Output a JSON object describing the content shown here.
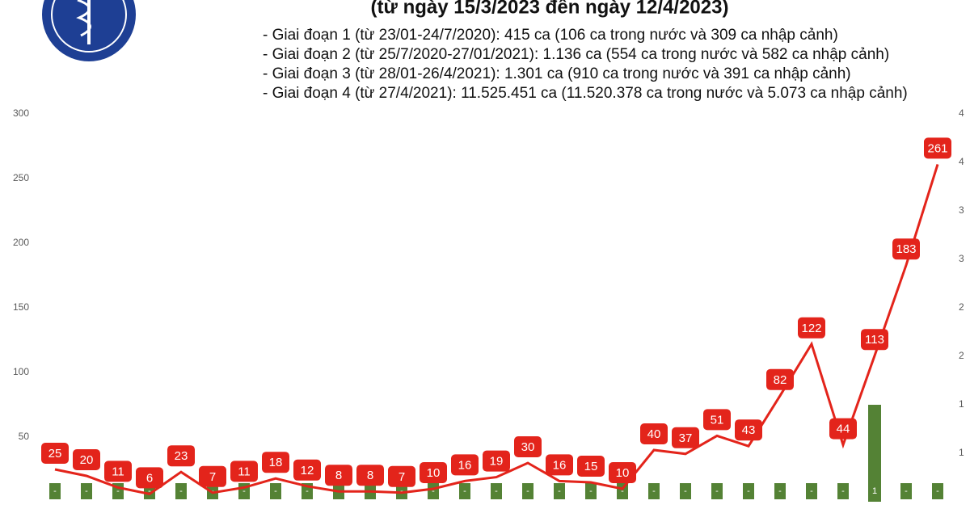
{
  "chart_data": {
    "type": "combo",
    "title": "(từ ngày 15/3/2023 đến ngày 12/4/2023)",
    "notes": [
      "- Giai đoạn 1 (từ 23/01-24/7/2020): 415 ca (106 ca trong nước và 309 ca nhập cảnh)",
      "- Giai đoạn 2 (từ 25/7/2020-27/01/2021): 1.136 ca (554 ca trong nước và 582 ca nhập cảnh)",
      "- Giai đoạn 3 (từ 28/01-26/4/2021): 1.301 ca (910 ca trong nước và 391 ca nhập cảnh)",
      "- Giai đoạn 4 (từ 27/4/2021): 11.525.451 ca (11.520.378 ca trong nước và 5.073 ca nhập cảnh)"
    ],
    "categories": [
      null,
      null,
      null,
      null,
      null,
      null,
      null,
      null,
      null,
      null,
      null,
      null,
      null,
      null,
      null,
      null,
      null,
      null,
      null,
      null,
      null,
      null,
      null,
      null,
      null,
      null,
      null,
      null,
      null
    ],
    "series": [
      {
        "type": "bar",
        "axis": "y2",
        "color": "#548235",
        "values": [
          0,
          0,
          0,
          0,
          0,
          0,
          0,
          0,
          0,
          0,
          0,
          0,
          0,
          0,
          0,
          0,
          0,
          0,
          0,
          0,
          0,
          0,
          0,
          0,
          0,
          0,
          1,
          0,
          0
        ],
        "value_labels": [
          "-",
          "-",
          "-",
          "-",
          "-",
          "-",
          "-",
          "-",
          "-",
          "-",
          "-",
          "-",
          "-",
          "-",
          "-",
          "-",
          "-",
          "-",
          "-",
          "-",
          "-",
          "-",
          "-",
          "-",
          "-",
          "-",
          "1",
          "-",
          "-"
        ]
      },
      {
        "type": "line",
        "color": "#e3241b",
        "values": [
          25,
          20,
          11,
          6,
          23,
          7,
          11,
          18,
          12,
          8,
          8,
          7,
          10,
          16,
          19,
          30,
          16,
          15,
          10,
          40,
          37,
          51,
          43,
          82,
          122,
          44,
          113,
          183,
          261
        ]
      }
    ],
    "ylim": [
      0,
      300
    ],
    "yticks": [
      50,
      100,
      150,
      200,
      250,
      300
    ],
    "y2lim": [
      0,
      4
    ],
    "y2ticks": [
      {
        "value": 0.5,
        "label": "1"
      },
      1,
      {
        "value": 1.5,
        "label": "2"
      },
      2,
      {
        "value": 2.5,
        "label": "3"
      },
      3,
      {
        "value": 3.5,
        "label": "4"
      },
      4
    ]
  }
}
